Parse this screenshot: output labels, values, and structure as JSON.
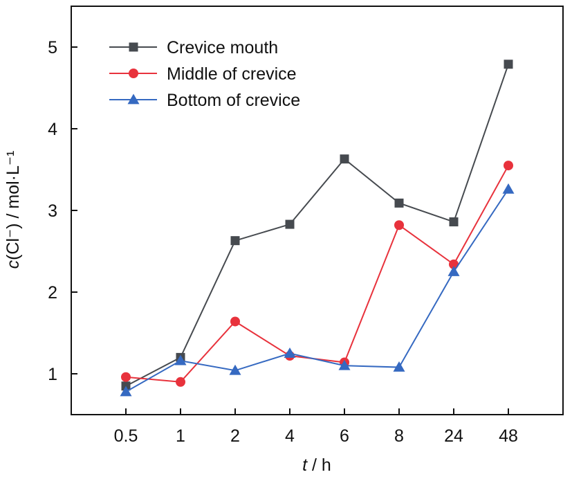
{
  "chart_data": {
    "type": "line",
    "title": "",
    "xlabel": {
      "italic": "t",
      "rest": " / h"
    },
    "ylabel": {
      "italic": "c",
      "rest": "(Cl⁻) / mol·L⁻¹"
    },
    "categories": [
      "0.5",
      "1",
      "2",
      "4",
      "6",
      "8",
      "24",
      "48"
    ],
    "ylim": [
      0.5,
      5.5
    ],
    "yticks": [
      1,
      2,
      3,
      4,
      5
    ],
    "ytick_labels": [
      "1",
      "2",
      "3",
      "4",
      "5"
    ],
    "grid": false,
    "legend_position": "top-left",
    "series": [
      {
        "name": "Crevice mouth",
        "marker": "square",
        "color": "#464a4f",
        "values": [
          0.85,
          1.2,
          2.63,
          2.83,
          3.63,
          3.09,
          2.86,
          4.79
        ]
      },
      {
        "name": "Middle of crevice",
        "marker": "circle",
        "color": "#e8323c",
        "values": [
          0.96,
          0.9,
          1.64,
          1.22,
          1.14,
          2.82,
          2.34,
          3.55
        ]
      },
      {
        "name": "Bottom of crevice",
        "marker": "triangle",
        "color": "#3569c1",
        "values": [
          0.78,
          1.16,
          1.04,
          1.25,
          1.1,
          1.08,
          2.25,
          3.26
        ]
      }
    ]
  }
}
